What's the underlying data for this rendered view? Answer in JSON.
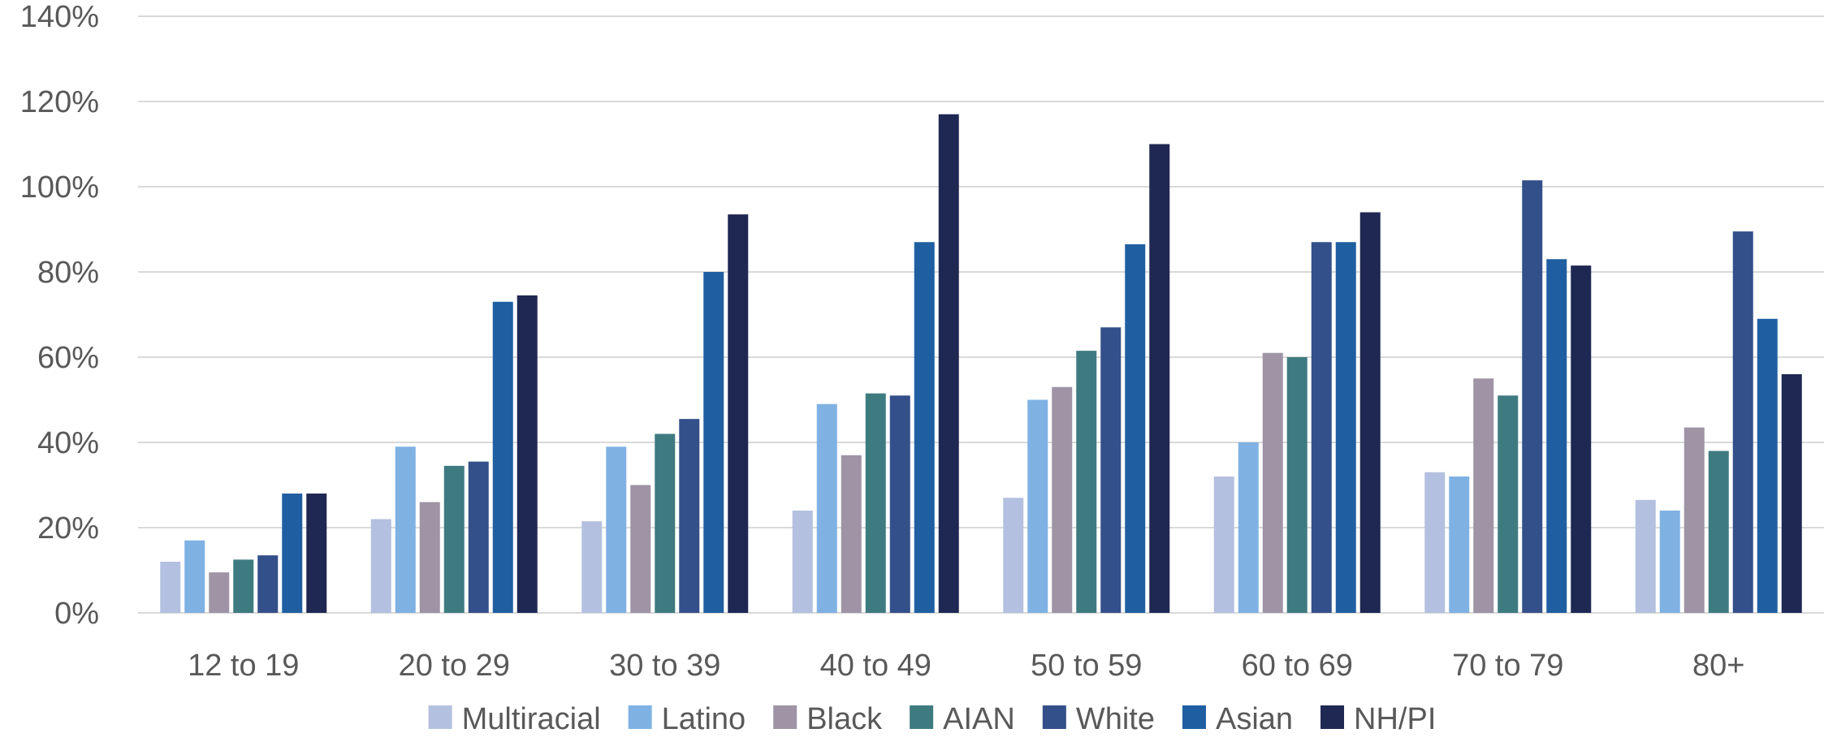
{
  "chart_data": {
    "type": "bar",
    "title": "",
    "xlabel": "",
    "ylabel": "",
    "categories": [
      "12 to 19",
      "20 to 29",
      "30 to 39",
      "40 to 49",
      "50 to 59",
      "60 to 69",
      "70 to 79",
      "80+"
    ],
    "ylim": [
      0,
      140
    ],
    "yticks": [
      0,
      20,
      40,
      60,
      80,
      100,
      120,
      140
    ],
    "ytick_labels": [
      "0%",
      "20%",
      "40%",
      "60%",
      "80%",
      "100%",
      "120%",
      "140%"
    ],
    "grid": true,
    "legend_position": "bottom",
    "series": [
      {
        "name": "Multiracial",
        "color": "#b4c0e0",
        "values": [
          12,
          22,
          21.5,
          24,
          27,
          32,
          33,
          26.5
        ]
      },
      {
        "name": "Latino",
        "color": "#7fb1e3",
        "values": [
          17,
          39,
          39,
          49,
          50,
          40,
          32,
          24
        ]
      },
      {
        "name": "Black",
        "color": "#9e94a5",
        "values": [
          9.5,
          26,
          30,
          37,
          53,
          61,
          55,
          43.5
        ]
      },
      {
        "name": "AIAN",
        "color": "#3e7b80",
        "values": [
          12.5,
          34.5,
          42,
          51.5,
          61.5,
          60,
          51,
          38
        ]
      },
      {
        "name": "White",
        "color": "#34508a",
        "values": [
          13.5,
          35.5,
          45.5,
          51,
          67,
          87,
          101.5,
          89.5
        ]
      },
      {
        "name": "Asian",
        "color": "#1f5fa1",
        "values": [
          28,
          73,
          80,
          87,
          86.5,
          87,
          83,
          69
        ]
      },
      {
        "name": "NH/PI",
        "color": "#1f2853",
        "values": [
          28,
          74.5,
          93.5,
          117,
          110,
          94,
          81.5,
          56
        ]
      }
    ]
  }
}
